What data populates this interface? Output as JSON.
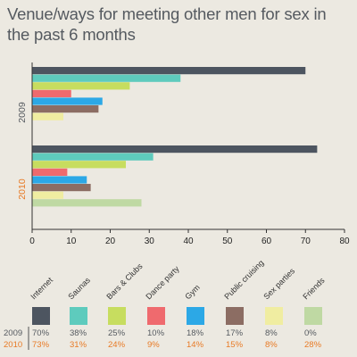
{
  "chart_data": {
    "type": "bar",
    "orientation": "horizontal",
    "title": "Venue/ways for meeting other men for sex in the past 6 months",
    "xlim": [
      0,
      80
    ],
    "xticks": [
      0,
      10,
      20,
      30,
      40,
      50,
      60,
      70,
      80
    ],
    "groups": [
      {
        "name": "2009",
        "color": "#555a60",
        "values": [
          70,
          38,
          25,
          10,
          18,
          17,
          8,
          0
        ]
      },
      {
        "name": "2010",
        "color": "#e87a25",
        "values": [
          73,
          31,
          24,
          9,
          14,
          15,
          8,
          28
        ]
      }
    ],
    "categories": [
      {
        "name": "Internet",
        "color": "#4d5560"
      },
      {
        "name": "Saunas",
        "color": "#5ecbbd"
      },
      {
        "name": "Bars & Clubs",
        "color": "#c7dd5f"
      },
      {
        "name": "Dance party",
        "color": "#ef6a6e"
      },
      {
        "name": "Gym",
        "color": "#2ca8e6"
      },
      {
        "name": "Public cruising",
        "color": "#8c6d63"
      },
      {
        "name": "Sex parties",
        "color": "#f0eda1"
      },
      {
        "name": "Friends",
        "color": "#bfd9a3"
      }
    ],
    "table": {
      "rows": [
        {
          "year": "2009",
          "color": "#555a60",
          "cells": [
            "70%",
            "38%",
            "25%",
            "10%",
            "18%",
            "17%",
            "8%",
            "0%"
          ]
        },
        {
          "year": "2010",
          "color": "#e87a25",
          "cells": [
            "73%",
            "31%",
            "24%",
            "9%",
            "14%",
            "15%",
            "8%",
            "28%"
          ]
        }
      ]
    },
    "grid": false,
    "legend": "bottom"
  }
}
